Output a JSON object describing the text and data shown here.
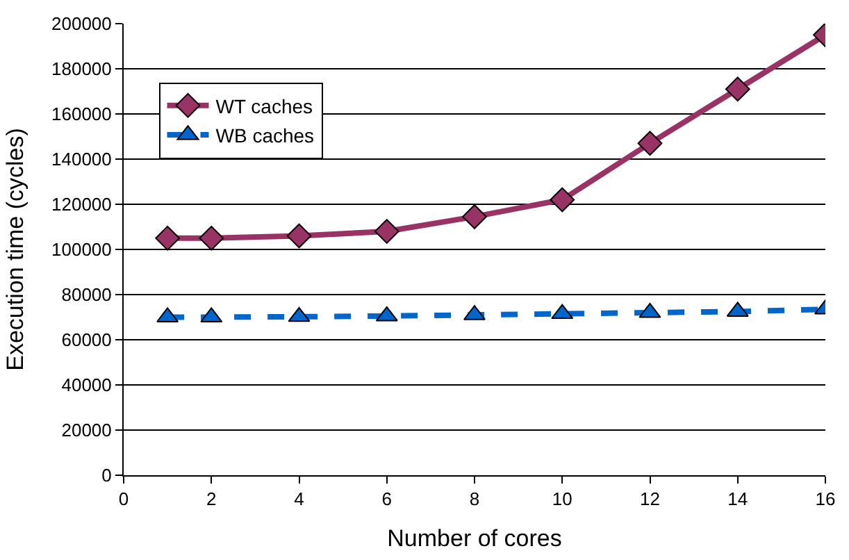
{
  "chart_data": {
    "type": "line",
    "xlabel": "Number of cores",
    "ylabel": "Execution time (cycles)",
    "x": [
      1,
      2,
      4,
      6,
      8,
      10,
      12,
      14,
      16
    ],
    "series": [
      {
        "name": "WT caches",
        "color": "#993366",
        "marker": "diamond",
        "line_style": "solid",
        "values": [
          105000,
          105000,
          106000,
          108000,
          114500,
          122000,
          147000,
          171000,
          195000
        ]
      },
      {
        "name": "WB caches",
        "color": "#0066cc",
        "marker": "triangle",
        "line_style": "dashed",
        "values": [
          70000,
          70000,
          70200,
          70500,
          71000,
          71500,
          72000,
          72500,
          73500
        ]
      }
    ],
    "xlim": [
      0,
      16
    ],
    "xticks": [
      0,
      2,
      4,
      6,
      8,
      10,
      12,
      14,
      16
    ],
    "ylim": [
      0,
      200000
    ],
    "yticks": [
      0,
      20000,
      40000,
      60000,
      80000,
      100000,
      120000,
      140000,
      160000,
      180000,
      200000
    ],
    "grid": "y",
    "legend": "top left"
  }
}
